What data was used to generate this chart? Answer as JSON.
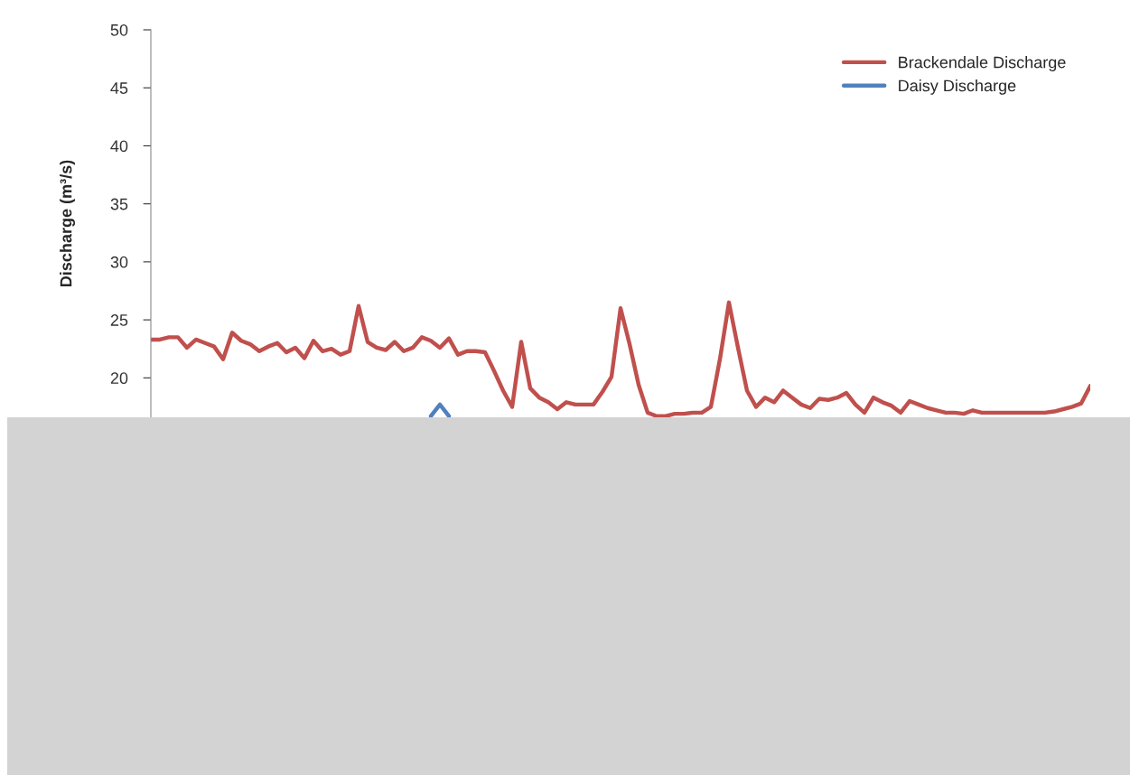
{
  "chart_data": {
    "type": "line",
    "ylabel": "Discharge (m³/s)",
    "categories": [
      null,
      null,
      null,
      null,
      null,
      null,
      null,
      null,
      null,
      null,
      null,
      null,
      null,
      null,
      null,
      null,
      null,
      null,
      null,
      null,
      null,
      null,
      null,
      null,
      null,
      null,
      null,
      null,
      null,
      null,
      null,
      null,
      null,
      null,
      null,
      null,
      null,
      null,
      null,
      null,
      null,
      null,
      null,
      null,
      null,
      null,
      null,
      null,
      null,
      null,
      null,
      null,
      null,
      null,
      null,
      null,
      null,
      null,
      null,
      null,
      null,
      null,
      null,
      null,
      null,
      null,
      null,
      null,
      null,
      null,
      null,
      null,
      null,
      null,
      null,
      null,
      null,
      null,
      null,
      null,
      null,
      null,
      null,
      null,
      null,
      null,
      null,
      null,
      null,
      null,
      null,
      null,
      null,
      null,
      null,
      null,
      null,
      null,
      null,
      null,
      null,
      null,
      null,
      null,
      null
    ],
    "series": [
      {
        "name": "Brackendale Discharge",
        "color": "#c0504d",
        "values": [
          23.3,
          23.3,
          23.5,
          23.5,
          22.6,
          23.3,
          23.0,
          22.7,
          21.6,
          23.9,
          23.2,
          22.9,
          22.3,
          22.7,
          23.0,
          22.2,
          22.6,
          21.7,
          23.2,
          22.3,
          22.5,
          22.0,
          22.3,
          26.2,
          23.1,
          22.6,
          22.4,
          23.1,
          22.3,
          22.6,
          23.5,
          23.2,
          22.6,
          23.4,
          22.0,
          22.3,
          22.3,
          22.2,
          20.6,
          18.9,
          17.5,
          23.1,
          19.1,
          18.3,
          17.9,
          17.3,
          17.9,
          17.7,
          17.7,
          17.7,
          18.8,
          20.1,
          26.0,
          22.9,
          19.4,
          17.0,
          16.7,
          16.7,
          16.9,
          16.9,
          17.0,
          17.0,
          17.5,
          21.6,
          26.5,
          22.6,
          18.9,
          17.5,
          18.3,
          17.9,
          18.9,
          18.3,
          17.7,
          17.4,
          18.2,
          18.1,
          18.3,
          18.7,
          17.7,
          17.0,
          18.3,
          17.9,
          17.6,
          17.0,
          18.0,
          17.7,
          17.4,
          17.2,
          17.0,
          17.0,
          16.9,
          17.2,
          17.0,
          17.0,
          17.0,
          17.0,
          17.0,
          17.0,
          17.0,
          17.0,
          17.1,
          17.3,
          17.5,
          17.8,
          19.3
        ]
      },
      {
        "name": "Daisy Discharge",
        "color": "#4f81bd",
        "values": [
          null,
          null,
          null,
          null,
          null,
          null,
          null,
          null,
          null,
          null,
          null,
          null,
          null,
          null,
          null,
          null,
          null,
          null,
          null,
          null,
          null,
          null,
          null,
          null,
          null,
          null,
          null,
          null,
          null,
          null,
          null,
          16.7,
          17.7,
          16.7,
          null,
          null,
          null,
          null,
          null,
          null,
          null,
          null,
          null,
          null,
          null,
          null,
          null,
          null,
          null,
          null,
          null,
          null,
          null,
          null,
          null,
          null,
          null,
          null,
          null,
          null,
          null,
          null,
          null,
          null,
          null,
          null,
          null,
          null,
          null,
          null,
          null,
          null,
          null,
          null,
          null,
          null,
          null,
          null,
          null,
          null,
          null,
          null,
          null,
          null,
          null,
          null,
          null,
          null,
          null,
          null,
          null,
          null,
          null,
          null,
          null,
          null,
          null,
          null,
          null,
          null,
          null,
          null,
          null,
          null,
          null
        ]
      }
    ],
    "ylim": [
      16.6,
      50
    ],
    "yticks": [
      20,
      25,
      30,
      35,
      40,
      45,
      50
    ],
    "tick_labels": "y",
    "grid": false,
    "legend": "top right",
    "marker": "none",
    "line_style": "solid"
  }
}
